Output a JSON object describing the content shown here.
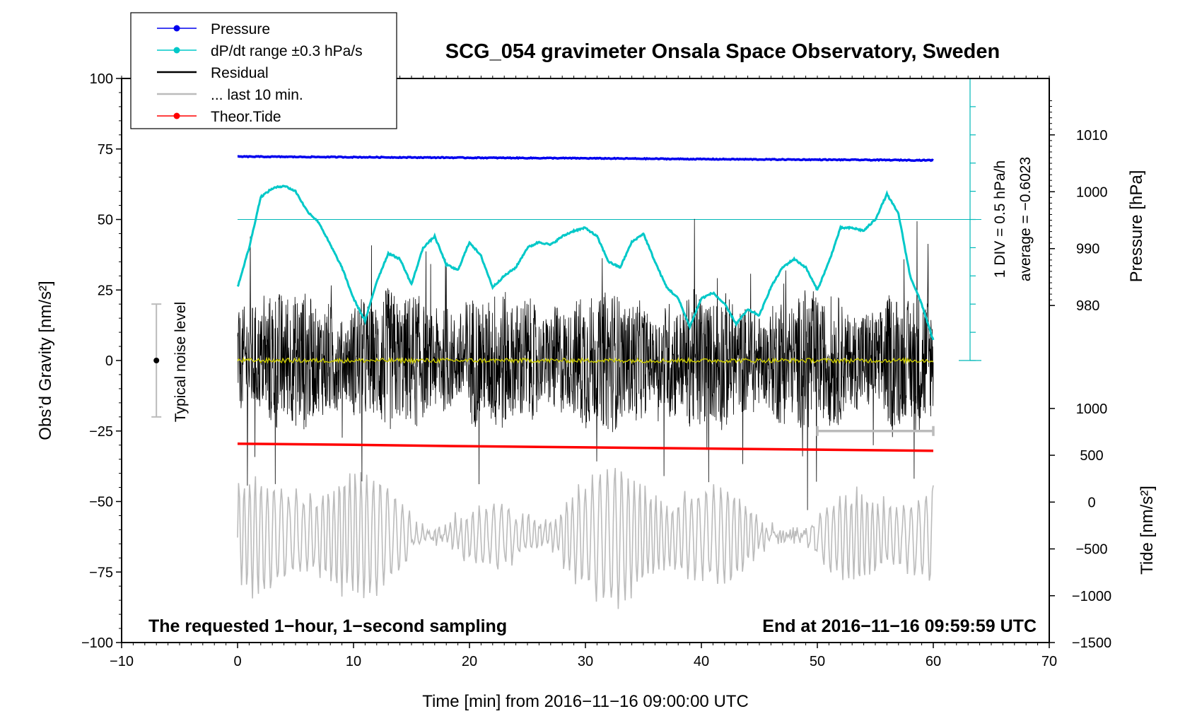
{
  "chart_data": {
    "type": "line",
    "title": "SCG_054 gravimeter Onsala Space Observatory, Sweden",
    "xlabel": "Time [min] from 2016−11−16 09:00:00 UTC",
    "ylabel_left": "Obs’d Gravity [nm/s²]",
    "ylabel_right_pressure": "Pressure [hPa]",
    "ylabel_right_tide": "Tide [nm/s²]",
    "xlim": [
      -10,
      70
    ],
    "ylim": [
      -100,
      100
    ],
    "x_ticks": [
      -10,
      0,
      10,
      20,
      30,
      40,
      50,
      60,
      70
    ],
    "x_tick_labels": [
      "−10",
      "0",
      "10",
      "20",
      "30",
      "40",
      "50",
      "60",
      "70"
    ],
    "y_ticks": [
      100,
      75,
      50,
      25,
      0,
      -25,
      -50,
      -75,
      -100
    ],
    "y_tick_labels": [
      "100",
      "75",
      "50",
      "25",
      "0",
      "−25",
      "−50",
      "−75",
      "−100"
    ],
    "pressure_axis": {
      "ticks": [
        1010,
        1000,
        990,
        980
      ],
      "tick_labels": [
        "1010",
        "1000",
        "990",
        "980"
      ],
      "map_pressure": [
        980,
        1010
      ],
      "map_gravity": [
        19.5,
        80
      ]
    },
    "tide_axis": {
      "ticks": [
        1000,
        500,
        0,
        -500,
        -1000,
        -1500
      ],
      "tick_labels": [
        "1000",
        "500",
        "0",
        "−500",
        "−1000",
        "−1500"
      ],
      "map_tide": [
        1000,
        -1500
      ],
      "map_gravity": [
        -17,
        -100
      ]
    },
    "dpdt_axis": {
      "zero_gravity": 0,
      "top_gravity": 100,
      "div_gravity": 10,
      "reference_line_gravity": 50,
      "label_div": "1 DIV = 0.5 hPa/h",
      "label_average": "average = −0.6023"
    },
    "legend": [
      {
        "label": "Pressure",
        "color": "#0000ee",
        "marker": true
      },
      {
        "label": "dP/dt range ±0.3 hPa/s",
        "color": "#00c8c8",
        "marker": true
      },
      {
        "label": "Residual",
        "color": "#000000",
        "marker": false
      },
      {
        "label": "... last 10 min.",
        "color": "#bbbbbb",
        "marker": false
      },
      {
        "label": "Theor.Tide",
        "color": "#ff0000",
        "marker": true
      }
    ],
    "noise_level": {
      "label": "Typical noise level",
      "x": -7,
      "low": -20,
      "high": 20,
      "center": 0
    },
    "last10_bar": {
      "x_start": 50,
      "x_end": 60,
      "y": -25
    },
    "series": [
      {
        "name": "Pressure",
        "color": "#0000ee",
        "x": [
          0,
          10,
          20,
          30,
          40,
          50,
          60
        ],
        "values": [
          72.3,
          72.1,
          71.9,
          71.7,
          71.4,
          71.2,
          71.0
        ]
      },
      {
        "name": "dP/dt",
        "color": "#00c8c8",
        "x": [
          0,
          1,
          2,
          3,
          4,
          5,
          6,
          7,
          8,
          9,
          10,
          11,
          12,
          13,
          14,
          15,
          16,
          17,
          18,
          19,
          20,
          21,
          22,
          23,
          24,
          25,
          26,
          27,
          28,
          29,
          30,
          31,
          32,
          33,
          34,
          35,
          36,
          37,
          38,
          39,
          40,
          41,
          42,
          43,
          44,
          45,
          46,
          47,
          48,
          49,
          50,
          51,
          52,
          53,
          54,
          55,
          56,
          57,
          58,
          59,
          60
        ],
        "values": [
          26,
          40,
          58,
          61,
          62,
          60,
          53,
          49,
          41,
          33,
          22,
          14,
          28,
          38,
          36,
          27,
          40,
          44,
          34,
          32,
          42,
          37,
          26,
          30,
          33,
          40,
          42,
          41,
          44,
          46,
          47,
          44,
          35,
          33,
          42,
          45,
          35,
          26,
          22,
          12,
          22,
          24,
          20,
          13,
          18,
          16,
          26,
          33,
          36,
          33,
          25,
          35,
          47,
          47,
          46,
          50,
          59,
          52,
          30,
          20,
          7
        ]
      },
      {
        "name": "Residual mean",
        "color": "#cccc00",
        "x": [
          0,
          10,
          20,
          30,
          40,
          50,
          60
        ],
        "values": [
          0,
          0,
          0,
          0,
          0,
          0,
          0
        ]
      },
      {
        "name": "Theor.Tide",
        "color": "#ff0000",
        "x": [
          0,
          10,
          20,
          30,
          40,
          50,
          60
        ],
        "values": [
          -29.5,
          -29.9,
          -30.4,
          -30.8,
          -31.2,
          -31.6,
          -32.0
        ]
      }
    ]
  },
  "footer": {
    "left": "The requested 1−hour, 1−second sampling",
    "right": "End at 2016−11−16 09:59:59 UTC"
  }
}
